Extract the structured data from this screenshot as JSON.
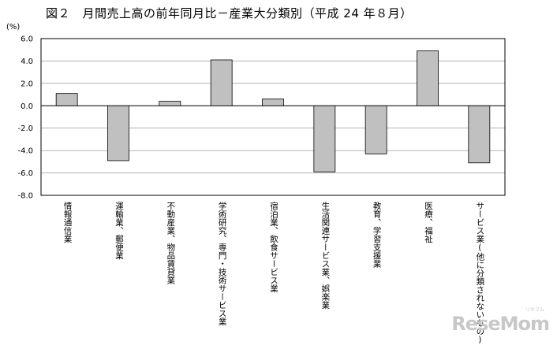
{
  "title": "図２　月間売上高の前年同月比－産業大分類別（平成 24 年８月）",
  "unit_label": "(%)",
  "watermark": "ReseMom",
  "watermark_small": "リセマム",
  "chart_data": {
    "type": "bar",
    "title": "図２　月間売上高の前年同月比－産業大分類別（平成 24 年８月）",
    "ylabel": "(%)",
    "xlabel": "",
    "ylim": [
      -8.0,
      6.0
    ],
    "yticks": [
      "6.0",
      "4.0",
      "2.0",
      "0.0",
      "-2.0",
      "-4.0",
      "-6.0",
      "-8.0"
    ],
    "categories": [
      "情報通信業",
      "運輸業、郵便業",
      "不動産業、物品賃貸業",
      "学術研究、専門・技術サービス業",
      "宿泊業、飲食サービス業",
      "生活関連サービス業、娯楽業",
      "教育、学習支援業",
      "医療、福祉",
      "サービス業(他に分類されないもの)"
    ],
    "values": [
      1.1,
      -4.9,
      0.4,
      4.1,
      0.6,
      -5.9,
      -4.3,
      4.9,
      -5.1
    ],
    "bar_color": "#c0c0c0",
    "grid": true
  }
}
